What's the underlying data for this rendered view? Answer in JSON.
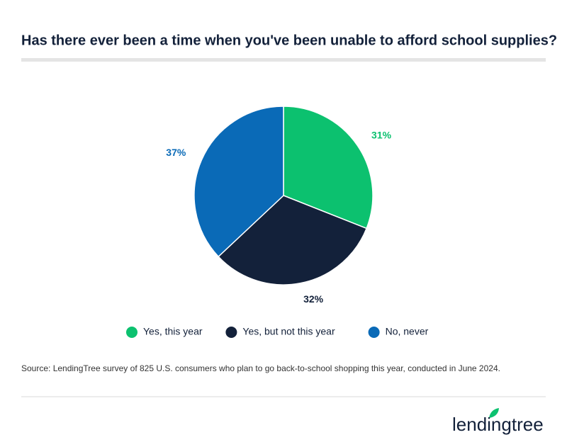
{
  "chart_data": {
    "type": "pie",
    "title": "Has there ever been a time when you've been unable to afford school supplies?",
    "categories": [
      "Yes, this year",
      "Yes, but not this year",
      "No, never"
    ],
    "values": [
      31,
      32,
      37
    ],
    "value_labels": [
      "31%",
      "32%",
      "37%"
    ],
    "colors": [
      "#0cc16f",
      "#13213a",
      "#0a6ab7"
    ],
    "legend": "bottom",
    "source": "Source: LendingTree survey of 825 U.S. consumers who plan to go back-to-school shopping this year, conducted in June 2024.",
    "logo": "lendingtree"
  }
}
